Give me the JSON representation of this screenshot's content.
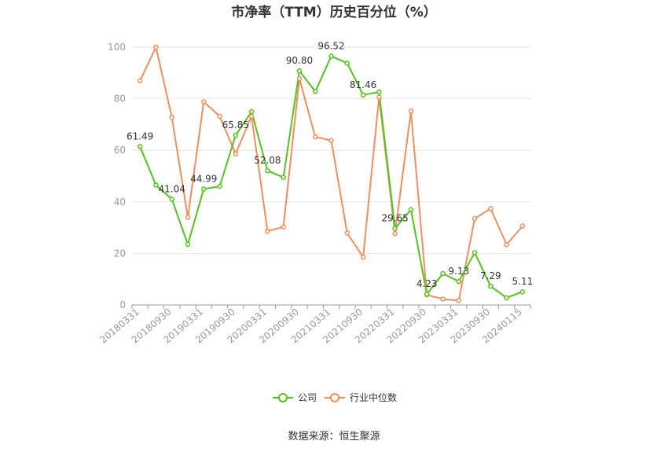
{
  "chart_data": {
    "type": "line",
    "title": "市净率（TTM）历史百分位（%）",
    "xlabel": "",
    "ylabel": "",
    "ylim": [
      0,
      100
    ],
    "yticks": [
      0,
      20,
      40,
      60,
      80,
      100
    ],
    "x": [
      "20180331",
      "",
      "20180930",
      "",
      "20190331",
      "",
      "20190930",
      "",
      "20200331",
      "",
      "20200930",
      "",
      "20210331",
      "",
      "20210930",
      "",
      "20220331",
      "",
      "20220930",
      "",
      "20230331",
      "",
      "20230930",
      "",
      "20240115"
    ],
    "x_tick_labels": [
      "20180331",
      "20180930",
      "20190331",
      "20190930",
      "20200331",
      "20200930",
      "20210331",
      "20210930",
      "20220331",
      "20220930",
      "20230331",
      "20230930",
      "20240115"
    ],
    "series": [
      {
        "name": "公司",
        "color": "#52c41a",
        "values": [
          61.49,
          46.5,
          41.04,
          23.5,
          44.99,
          46.0,
          65.85,
          75.0,
          52.08,
          49.5,
          90.8,
          82.8,
          96.52,
          93.8,
          81.46,
          82.6,
          29.65,
          37.0,
          4.23,
          12.2,
          9.13,
          20.3,
          7.29,
          2.8,
          5.11
        ],
        "labels": {
          "0": "61.49",
          "2": "41.04",
          "4": "44.99",
          "6": "65.85",
          "8": "52.08",
          "10": "90.80",
          "12": "96.52",
          "14": "81.46",
          "16": "29.65",
          "18": "4.23",
          "20": "9.13",
          "22": "7.29",
          "24": "5.11"
        }
      },
      {
        "name": "行业中位数",
        "color": "#f28e5e",
        "values": [
          87.0,
          100.0,
          72.8,
          34.0,
          78.8,
          73.2,
          58.6,
          73.2,
          28.6,
          30.3,
          87.8,
          65.2,
          63.8,
          27.9,
          18.5,
          80.6,
          27.7,
          75.2,
          3.9,
          2.3,
          1.7,
          33.5,
          37.4,
          23.4,
          30.6
        ]
      }
    ],
    "grid": true,
    "legend": "bottom-center"
  },
  "source_text": "数据来源：恒生聚源"
}
